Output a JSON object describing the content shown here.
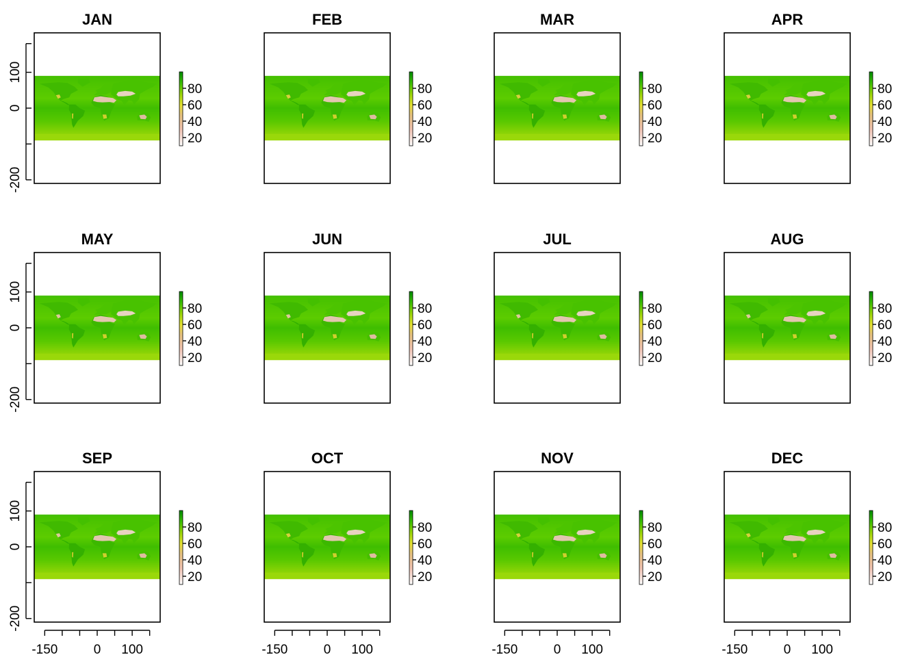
{
  "figure": {
    "type": "small-multiples-raster",
    "layout": {
      "rows": 3,
      "cols": 4
    },
    "colors": {
      "palette": [
        "#ffffff",
        "#f2c2b0",
        "#e8c89a",
        "#e6e232",
        "#b4dc14",
        "#5ad200",
        "#1fae00",
        "#008a00"
      ],
      "ocean_green": "#4fc600",
      "land_green": "#38b800",
      "desert_low": "#f4dcd2",
      "desert_high": "#e8b8a6"
    }
  },
  "chart_data": [
    {
      "type": "heatmap",
      "title": "JAN",
      "panel": 0,
      "xticks": [
        -150,
        -100,
        -50,
        0,
        50,
        100,
        150
      ],
      "xtick_labels": [
        "-150",
        "0",
        "100"
      ],
      "yticks": [
        -200,
        -100,
        0,
        100
      ],
      "ytick_labels": [
        "-200",
        "0",
        "100"
      ],
      "xlim": [
        -180,
        180
      ],
      "ylim": [
        -210,
        210
      ],
      "data_extent": {
        "lon": [
          -180,
          180
        ],
        "lat": [
          -90,
          90
        ]
      },
      "legend": {
        "ticks": [
          20,
          40,
          60,
          80
        ],
        "range": [
          10,
          100
        ]
      }
    },
    {
      "type": "heatmap",
      "title": "FEB",
      "panel": 1,
      "xticks": [
        -150,
        -100,
        -50,
        0,
        50,
        100,
        150
      ],
      "xtick_labels": [
        "-150",
        "0",
        "100"
      ],
      "yticks": [
        -200,
        -100,
        0,
        100
      ],
      "ytick_labels": [
        "-200",
        "0",
        "100"
      ],
      "xlim": [
        -180,
        180
      ],
      "ylim": [
        -210,
        210
      ],
      "data_extent": {
        "lon": [
          -180,
          180
        ],
        "lat": [
          -90,
          90
        ]
      },
      "legend": {
        "ticks": [
          20,
          40,
          60,
          80
        ],
        "range": [
          10,
          100
        ]
      }
    },
    {
      "type": "heatmap",
      "title": "MAR",
      "panel": 2,
      "xticks": [
        -150,
        -100,
        -50,
        0,
        50,
        100,
        150
      ],
      "xtick_labels": [
        "-150",
        "0",
        "100"
      ],
      "yticks": [
        -200,
        -100,
        0,
        100
      ],
      "ytick_labels": [
        "-200",
        "0",
        "100"
      ],
      "xlim": [
        -180,
        180
      ],
      "ylim": [
        -210,
        210
      ],
      "data_extent": {
        "lon": [
          -180,
          180
        ],
        "lat": [
          -90,
          90
        ]
      },
      "legend": {
        "ticks": [
          20,
          40,
          60,
          80
        ],
        "range": [
          10,
          100
        ]
      }
    },
    {
      "type": "heatmap",
      "title": "APR",
      "panel": 3,
      "xticks": [
        -150,
        -100,
        -50,
        0,
        50,
        100,
        150
      ],
      "xtick_labels": [
        "-150",
        "0",
        "100"
      ],
      "yticks": [
        -200,
        -100,
        0,
        100
      ],
      "ytick_labels": [
        "-200",
        "0",
        "100"
      ],
      "xlim": [
        -180,
        180
      ],
      "ylim": [
        -210,
        210
      ],
      "data_extent": {
        "lon": [
          -180,
          180
        ],
        "lat": [
          -90,
          90
        ]
      },
      "legend": {
        "ticks": [
          20,
          40,
          60,
          80
        ],
        "range": [
          10,
          100
        ]
      }
    },
    {
      "type": "heatmap",
      "title": "MAY",
      "panel": 4,
      "xticks": [
        -150,
        -100,
        -50,
        0,
        50,
        100,
        150
      ],
      "xtick_labels": [
        "-150",
        "0",
        "100"
      ],
      "yticks": [
        -200,
        -100,
        0,
        100
      ],
      "ytick_labels": [
        "-200",
        "0",
        "100"
      ],
      "xlim": [
        -180,
        180
      ],
      "ylim": [
        -210,
        210
      ],
      "data_extent": {
        "lon": [
          -180,
          180
        ],
        "lat": [
          -90,
          90
        ]
      },
      "legend": {
        "ticks": [
          20,
          40,
          60,
          80
        ],
        "range": [
          10,
          100
        ]
      }
    },
    {
      "type": "heatmap",
      "title": "JUN",
      "panel": 5,
      "xticks": [
        -150,
        -100,
        -50,
        0,
        50,
        100,
        150
      ],
      "xtick_labels": [
        "-150",
        "0",
        "100"
      ],
      "yticks": [
        -200,
        -100,
        0,
        100
      ],
      "ytick_labels": [
        "-200",
        "0",
        "100"
      ],
      "xlim": [
        -180,
        180
      ],
      "ylim": [
        -210,
        210
      ],
      "data_extent": {
        "lon": [
          -180,
          180
        ],
        "lat": [
          -90,
          90
        ]
      },
      "legend": {
        "ticks": [
          20,
          40,
          60,
          80
        ],
        "range": [
          10,
          100
        ]
      }
    },
    {
      "type": "heatmap",
      "title": "JUL",
      "panel": 6,
      "xticks": [
        -150,
        -100,
        -50,
        0,
        50,
        100,
        150
      ],
      "xtick_labels": [
        "-150",
        "0",
        "100"
      ],
      "yticks": [
        -200,
        -100,
        0,
        100
      ],
      "ytick_labels": [
        "-200",
        "0",
        "100"
      ],
      "xlim": [
        -180,
        180
      ],
      "ylim": [
        -210,
        210
      ],
      "data_extent": {
        "lon": [
          -180,
          180
        ],
        "lat": [
          -90,
          90
        ]
      },
      "legend": {
        "ticks": [
          20,
          40,
          60,
          80
        ],
        "range": [
          10,
          100
        ]
      }
    },
    {
      "type": "heatmap",
      "title": "AUG",
      "panel": 7,
      "xticks": [
        -150,
        -100,
        -50,
        0,
        50,
        100,
        150
      ],
      "xtick_labels": [
        "-150",
        "0",
        "100"
      ],
      "yticks": [
        -200,
        -100,
        0,
        100
      ],
      "ytick_labels": [
        "-200",
        "0",
        "100"
      ],
      "xlim": [
        -180,
        180
      ],
      "ylim": [
        -210,
        210
      ],
      "data_extent": {
        "lon": [
          -180,
          180
        ],
        "lat": [
          -90,
          90
        ]
      },
      "legend": {
        "ticks": [
          20,
          40,
          60,
          80
        ],
        "range": [
          10,
          100
        ]
      }
    },
    {
      "type": "heatmap",
      "title": "SEP",
      "panel": 8,
      "xticks": [
        -150,
        -100,
        -50,
        0,
        50,
        100,
        150
      ],
      "xtick_labels": [
        "-150",
        "0",
        "100"
      ],
      "yticks": [
        -200,
        -100,
        0,
        100
      ],
      "ytick_labels": [
        "-200",
        "0",
        "100"
      ],
      "xlim": [
        -180,
        180
      ],
      "ylim": [
        -210,
        210
      ],
      "data_extent": {
        "lon": [
          -180,
          180
        ],
        "lat": [
          -90,
          90
        ]
      },
      "legend": {
        "ticks": [
          20,
          40,
          60,
          80
        ],
        "range": [
          10,
          100
        ]
      }
    },
    {
      "type": "heatmap",
      "title": "OCT",
      "panel": 9,
      "xticks": [
        -150,
        -100,
        -50,
        0,
        50,
        100,
        150
      ],
      "xtick_labels": [
        "-150",
        "0",
        "100"
      ],
      "yticks": [
        -200,
        -100,
        0,
        100
      ],
      "ytick_labels": [
        "-200",
        "0",
        "100"
      ],
      "xlim": [
        -180,
        180
      ],
      "ylim": [
        -210,
        210
      ],
      "data_extent": {
        "lon": [
          -180,
          180
        ],
        "lat": [
          -90,
          90
        ]
      },
      "legend": {
        "ticks": [
          20,
          40,
          60,
          80
        ],
        "range": [
          10,
          100
        ]
      }
    },
    {
      "type": "heatmap",
      "title": "NOV",
      "panel": 10,
      "xticks": [
        -150,
        -100,
        -50,
        0,
        50,
        100,
        150
      ],
      "xtick_labels": [
        "-150",
        "0",
        "100"
      ],
      "yticks": [
        -200,
        -100,
        0,
        100
      ],
      "ytick_labels": [
        "-200",
        "0",
        "100"
      ],
      "xlim": [
        -180,
        180
      ],
      "ylim": [
        -210,
        210
      ],
      "data_extent": {
        "lon": [
          -180,
          180
        ],
        "lat": [
          -90,
          90
        ]
      },
      "legend": {
        "ticks": [
          20,
          40,
          60,
          80
        ],
        "range": [
          10,
          100
        ]
      }
    },
    {
      "type": "heatmap",
      "title": "DEC",
      "panel": 11,
      "xticks": [
        -150,
        -100,
        -50,
        0,
        50,
        100,
        150
      ],
      "xtick_labels": [
        "-150",
        "0",
        "100"
      ],
      "yticks": [
        -200,
        -100,
        0,
        100
      ],
      "ytick_labels": [
        "-200",
        "0",
        "100"
      ],
      "xlim": [
        -180,
        180
      ],
      "ylim": [
        -210,
        210
      ],
      "data_extent": {
        "lon": [
          -180,
          180
        ],
        "lat": [
          -90,
          90
        ]
      },
      "legend": {
        "ticks": [
          20,
          40,
          60,
          80
        ],
        "range": [
          10,
          100
        ]
      }
    }
  ]
}
